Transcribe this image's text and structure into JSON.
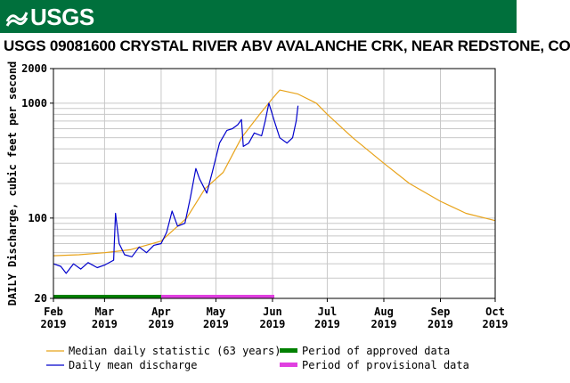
{
  "header": {
    "agency_logo_text": "USGS",
    "title": "USGS 09081600 CRYSTAL RIVER ABV AVALANCHE CRK, NEAR REDSTONE, CO"
  },
  "colors": {
    "banner": "#00703c",
    "median_line": "#e8a31a",
    "daily_line": "#0000cc",
    "approved": "#008000",
    "provisional": "#e040e0",
    "grid": "#c8c8c8"
  },
  "chart_data": {
    "type": "line",
    "y_scale": "log",
    "ylim": [
      20,
      2000
    ],
    "y_ticks": [
      20,
      100,
      1000,
      2000
    ],
    "ylabel": "DAILY Discharge, cubic feet per second",
    "xlabel": "",
    "x_range": [
      "2019-02-01",
      "2019-10-01"
    ],
    "x_ticks": [
      {
        "date": "2019-02-01",
        "label_month": "Feb",
        "label_year": "2019"
      },
      {
        "date": "2019-03-01",
        "label_month": "Mar",
        "label_year": "2019"
      },
      {
        "date": "2019-04-01",
        "label_month": "Apr",
        "label_year": "2019"
      },
      {
        "date": "2019-05-01",
        "label_month": "May",
        "label_year": "2019"
      },
      {
        "date": "2019-06-01",
        "label_month": "Jun",
        "label_year": "2019"
      },
      {
        "date": "2019-07-01",
        "label_month": "Jul",
        "label_year": "2019"
      },
      {
        "date": "2019-08-01",
        "label_month": "Aug",
        "label_year": "2019"
      },
      {
        "date": "2019-09-01",
        "label_month": "Sep",
        "label_year": "2019"
      },
      {
        "date": "2019-10-01",
        "label_month": "Oct",
        "label_year": "2019"
      }
    ],
    "grid": true,
    "series": [
      {
        "name": "Median daily statistic (63 years)",
        "points": [
          [
            "2019-02-01",
            47
          ],
          [
            "2019-02-15",
            48
          ],
          [
            "2019-03-01",
            50
          ],
          [
            "2019-03-15",
            53
          ],
          [
            "2019-04-01",
            63
          ],
          [
            "2019-04-15",
            100
          ],
          [
            "2019-04-25",
            180
          ],
          [
            "2019-05-05",
            250
          ],
          [
            "2019-05-15",
            500
          ],
          [
            "2019-05-25",
            800
          ],
          [
            "2019-06-01",
            1100
          ],
          [
            "2019-06-05",
            1300
          ],
          [
            "2019-06-15",
            1200
          ],
          [
            "2019-06-25",
            1000
          ],
          [
            "2019-07-01",
            800
          ],
          [
            "2019-07-15",
            500
          ],
          [
            "2019-08-01",
            300
          ],
          [
            "2019-08-15",
            200
          ],
          [
            "2019-09-01",
            140
          ],
          [
            "2019-09-15",
            110
          ],
          [
            "2019-10-01",
            95
          ]
        ]
      },
      {
        "name": "Daily mean discharge",
        "points": [
          [
            "2019-02-01",
            40
          ],
          [
            "2019-02-05",
            38
          ],
          [
            "2019-02-08",
            33
          ],
          [
            "2019-02-12",
            40
          ],
          [
            "2019-02-16",
            36
          ],
          [
            "2019-02-20",
            41
          ],
          [
            "2019-02-25",
            37
          ],
          [
            "2019-03-01",
            39
          ],
          [
            "2019-03-06",
            43
          ],
          [
            "2019-03-07",
            110
          ],
          [
            "2019-03-09",
            60
          ],
          [
            "2019-03-12",
            48
          ],
          [
            "2019-03-16",
            46
          ],
          [
            "2019-03-20",
            56
          ],
          [
            "2019-03-24",
            50
          ],
          [
            "2019-03-28",
            58
          ],
          [
            "2019-04-01",
            60
          ],
          [
            "2019-04-04",
            75
          ],
          [
            "2019-04-07",
            115
          ],
          [
            "2019-04-10",
            85
          ],
          [
            "2019-04-14",
            90
          ],
          [
            "2019-04-17",
            150
          ],
          [
            "2019-04-20",
            270
          ],
          [
            "2019-04-22",
            220
          ],
          [
            "2019-04-26",
            165
          ],
          [
            "2019-04-29",
            250
          ],
          [
            "2019-05-03",
            450
          ],
          [
            "2019-05-07",
            580
          ],
          [
            "2019-05-10",
            600
          ],
          [
            "2019-05-13",
            650
          ],
          [
            "2019-05-15",
            720
          ],
          [
            "2019-05-16",
            420
          ],
          [
            "2019-05-19",
            450
          ],
          [
            "2019-05-22",
            550
          ],
          [
            "2019-05-26",
            520
          ],
          [
            "2019-05-28",
            700
          ],
          [
            "2019-05-30",
            1000
          ],
          [
            "2019-06-02",
            700
          ],
          [
            "2019-06-05",
            500
          ],
          [
            "2019-06-09",
            450
          ],
          [
            "2019-06-12",
            500
          ],
          [
            "2019-06-14",
            700
          ],
          [
            "2019-06-15",
            950
          ]
        ]
      }
    ],
    "periods": [
      {
        "name": "Period of approved data",
        "start": "2019-02-01",
        "end": "2019-04-01"
      },
      {
        "name": "Period of provisional data",
        "start": "2019-04-01",
        "end": "2019-06-02"
      }
    ],
    "legend": {
      "placement": "bottom",
      "items": [
        {
          "label": "Median daily statistic (63 years)",
          "kind": "line",
          "color_key": "median_line"
        },
        {
          "label": "Period of approved data",
          "kind": "bar",
          "color_key": "approved"
        },
        {
          "label": "Daily mean discharge",
          "kind": "line",
          "color_key": "daily_line"
        },
        {
          "label": "Period of provisional data",
          "kind": "bar",
          "color_key": "provisional"
        }
      ]
    }
  }
}
